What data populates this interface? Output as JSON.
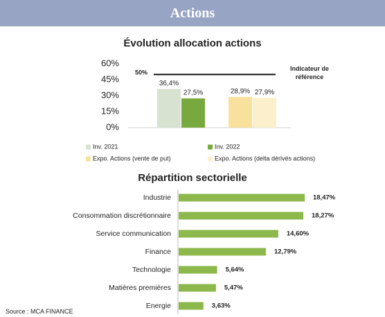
{
  "header": {
    "title": "Actions"
  },
  "source": "Source : MCA FINANCE",
  "chart_data": [
    {
      "type": "bar",
      "title": "Évolution allocation actions",
      "categories": [
        null,
        null
      ],
      "series": [
        {
          "name": "Inv. 2021",
          "color": "#d7e3d0",
          "values": [
            36.4,
            null
          ],
          "value_labels": [
            "36,4%",
            null
          ]
        },
        {
          "name": "Inv. 2022",
          "color": "#78a93f",
          "values": [
            27.5,
            null
          ],
          "value_labels": [
            "27,5%",
            null
          ]
        },
        {
          "name": "Expo. Actions (vente de put)",
          "color": "#f8e19c",
          "values": [
            null,
            28.9
          ],
          "value_labels": [
            null,
            "28,9%"
          ]
        },
        {
          "name": "Expo. Actions (delta dérivés actions)",
          "color": "#fcf0cc",
          "values": [
            null,
            27.9
          ],
          "value_labels": [
            null,
            "27,9%"
          ]
        }
      ],
      "ylim": [
        0,
        60
      ],
      "yticks": [
        {
          "value": 0,
          "label": "0%"
        },
        {
          "value": 15,
          "label": "15%"
        },
        {
          "value": 30,
          "label": "30%"
        },
        {
          "value": 45,
          "label": "45%"
        },
        {
          "value": 60,
          "label": "60%"
        }
      ],
      "reference_line": {
        "value": 50,
        "label": "50%",
        "name": "Indicateur de référence"
      }
    },
    {
      "type": "hbar",
      "title": "Répartition sectorielle",
      "categories": [
        "Industrie",
        "Consommation discrétionnaire",
        "Service communication",
        "Finance",
        "Technologie",
        "Matières premières",
        "Energie"
      ],
      "values": [
        18.47,
        18.27,
        14.6,
        12.79,
        5.64,
        5.47,
        3.63
      ],
      "value_labels": [
        "18,47%",
        "18,27%",
        "14,60%",
        "12,79%",
        "5,64%",
        "5,47%",
        "3,63%"
      ],
      "color": "#8cb84c"
    }
  ]
}
